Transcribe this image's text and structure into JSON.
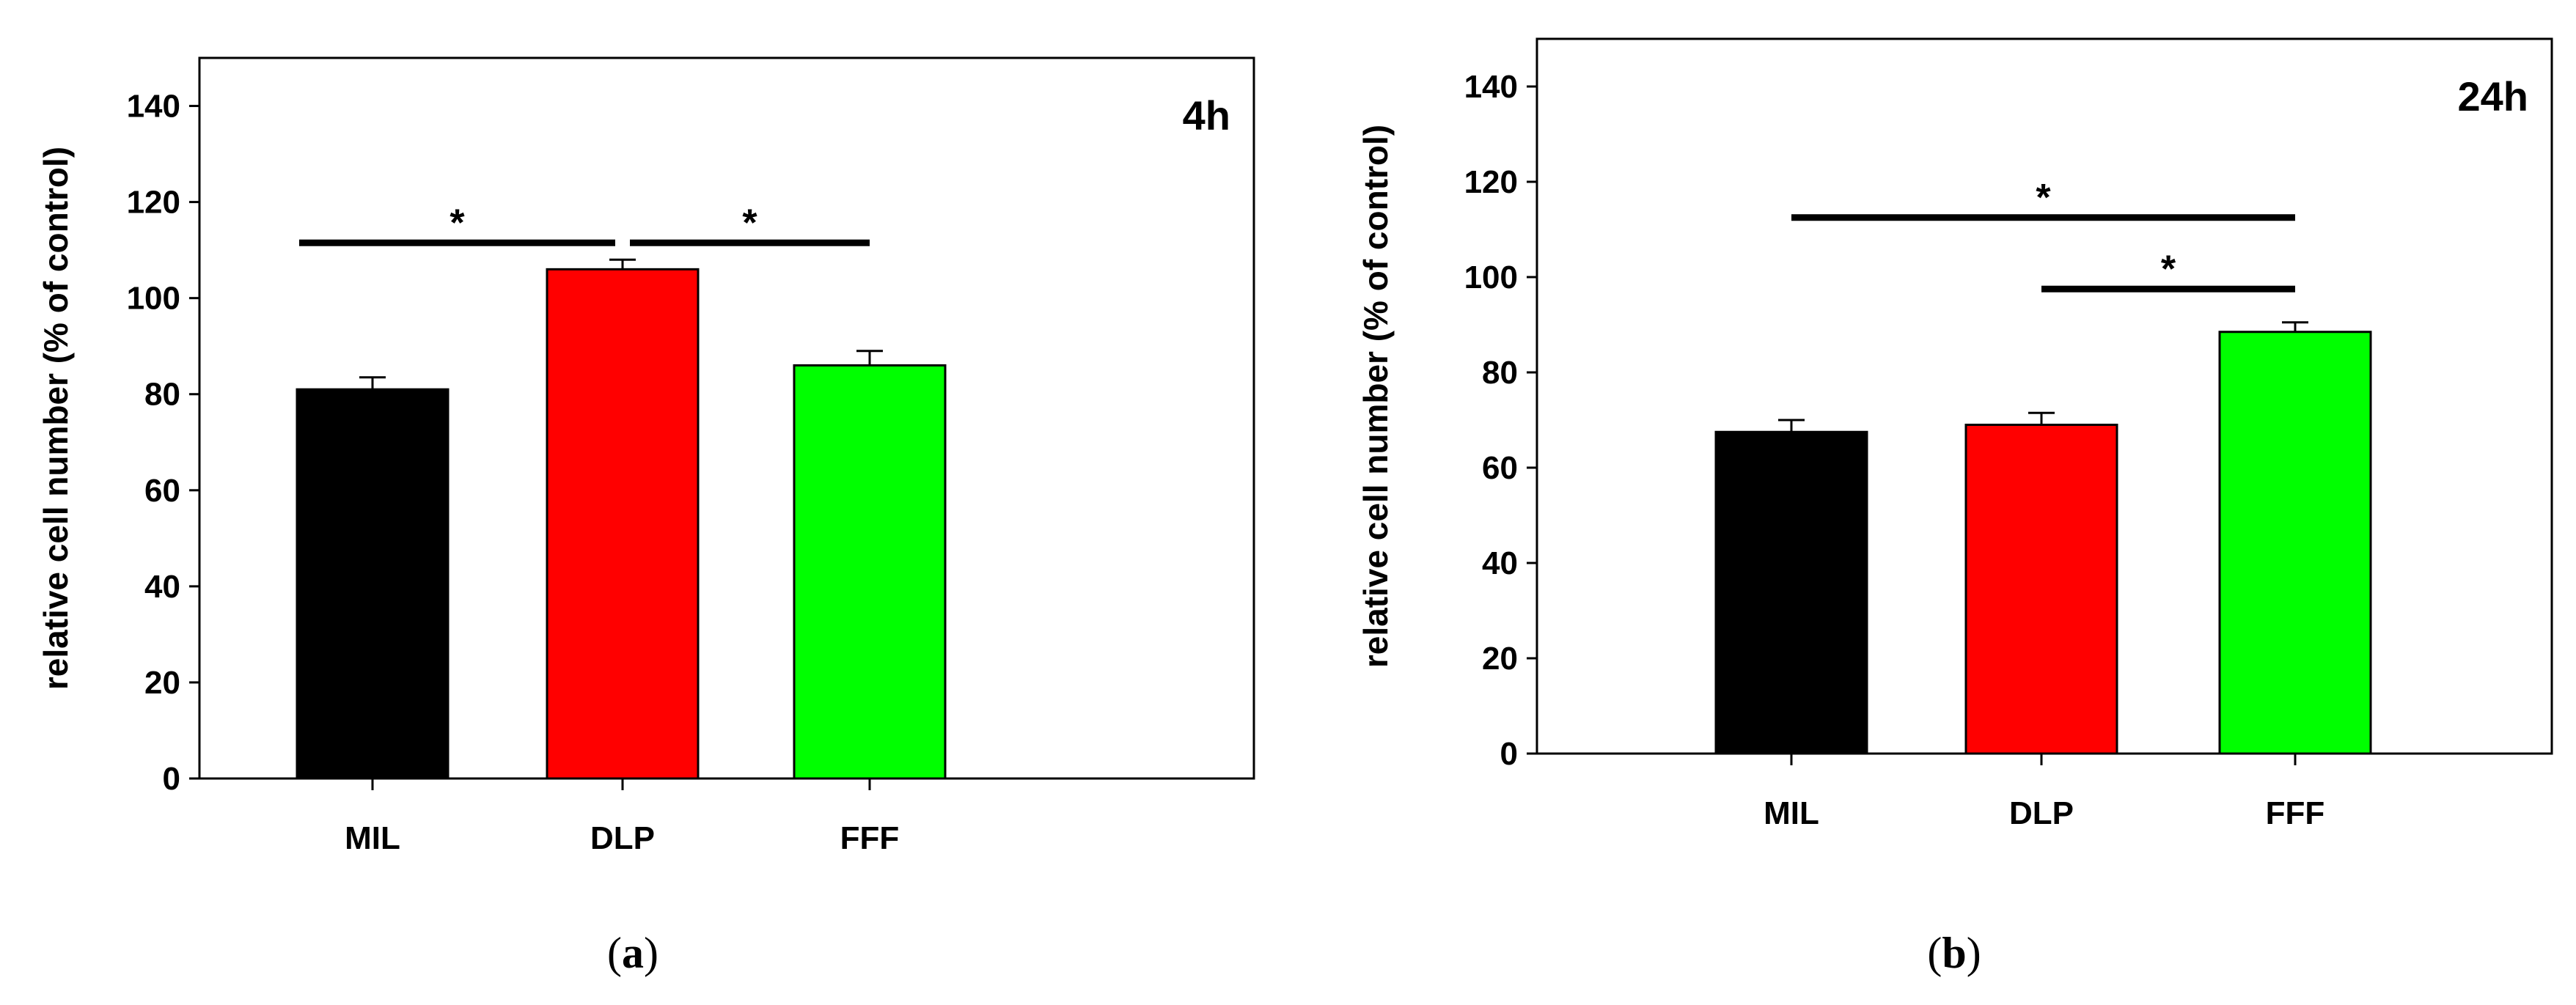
{
  "chart_data": [
    {
      "type": "bar",
      "caption": "a",
      "panel_label": "4h",
      "ylabel": "relative cell number (% of control)",
      "categories": [
        "MIL",
        "DLP",
        "FFF"
      ],
      "values": [
        81,
        106,
        86
      ],
      "errors": [
        2.5,
        2.0,
        3.0
      ],
      "colors": [
        "#000000",
        "#ff0000",
        "#00ff00"
      ],
      "ylim": [
        0,
        150
      ],
      "yticks": [
        0,
        20,
        40,
        60,
        80,
        100,
        120,
        140
      ],
      "significance": [
        {
          "from": "MIL",
          "to": "DLP",
          "y": 111.5,
          "label": "*"
        },
        {
          "from": "DLP",
          "to": "FFF",
          "y": 111.5,
          "label": "*"
        }
      ]
    },
    {
      "type": "bar",
      "caption": "b",
      "panel_label": "24h",
      "ylabel": "relative cell number (% of control)",
      "categories": [
        "MIL",
        "DLP",
        "FFF"
      ],
      "values": [
        67.5,
        69,
        88.5
      ],
      "errors": [
        2.5,
        2.5,
        2.0
      ],
      "colors": [
        "#000000",
        "#ff0000",
        "#00ff00"
      ],
      "ylim": [
        0,
        150
      ],
      "yticks": [
        0,
        20,
        40,
        60,
        80,
        100,
        120,
        140
      ],
      "significance": [
        {
          "from": "MIL",
          "to": "FFF",
          "y": 112.5,
          "label": "*"
        },
        {
          "from": "DLP",
          "to": "FFF",
          "y": 97.5,
          "label": "*"
        }
      ]
    }
  ]
}
